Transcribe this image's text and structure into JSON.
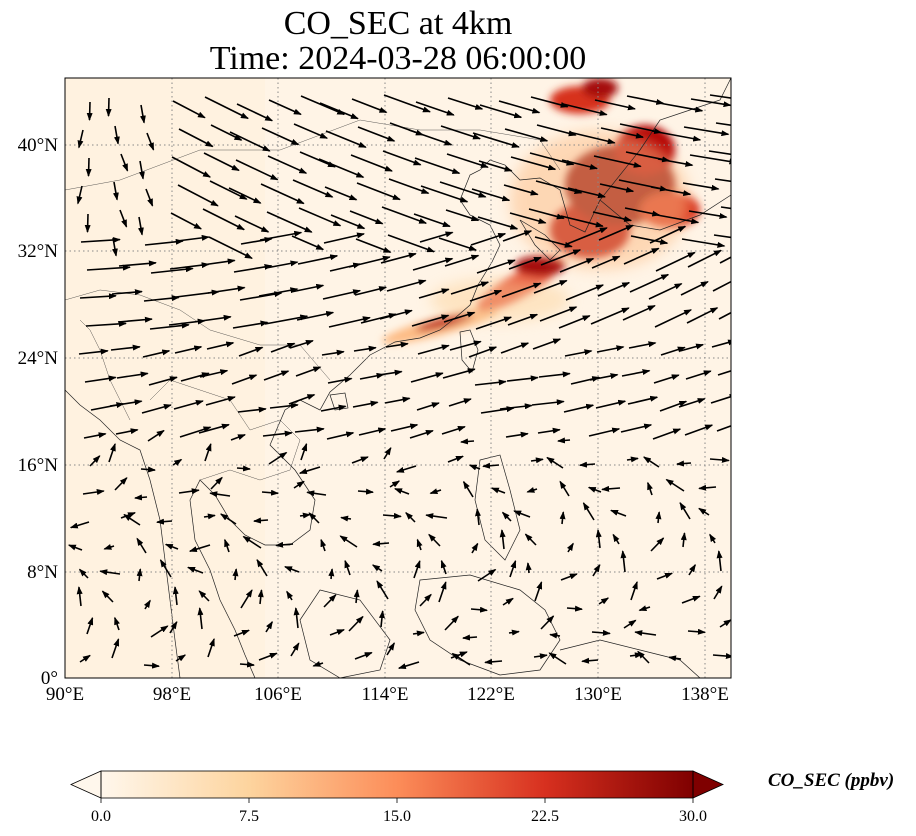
{
  "title": {
    "line1": "CO_SEC at 4km",
    "line2": "Time: 2024-03-28 06:00:00"
  },
  "map": {
    "extent": {
      "lon": [
        90,
        140
      ],
      "lat": [
        0,
        45
      ]
    },
    "projection": "PlateCarree",
    "gridlines": "dotted grey",
    "lat_labels": [
      "40°N",
      "32°N",
      "24°N",
      "16°N",
      "8°N",
      "0°"
    ],
    "lon_labels": [
      "90°E",
      "98°E",
      "106°E",
      "114°E",
      "122°E",
      "130°E",
      "138°E"
    ],
    "colormap": "OrRd",
    "wind_vectors": "black quiver arrows"
  },
  "colorbar": {
    "label": "CO_SEC (ppbv)",
    "ticks": [
      "0.0",
      "7.5",
      "15.0",
      "22.5",
      "30.0"
    ],
    "range": [
      0,
      30
    ],
    "extend": "both",
    "colors": [
      "#fff7ec",
      "#fdd49e",
      "#fc8d59",
      "#d7301f",
      "#7f0000"
    ]
  }
}
